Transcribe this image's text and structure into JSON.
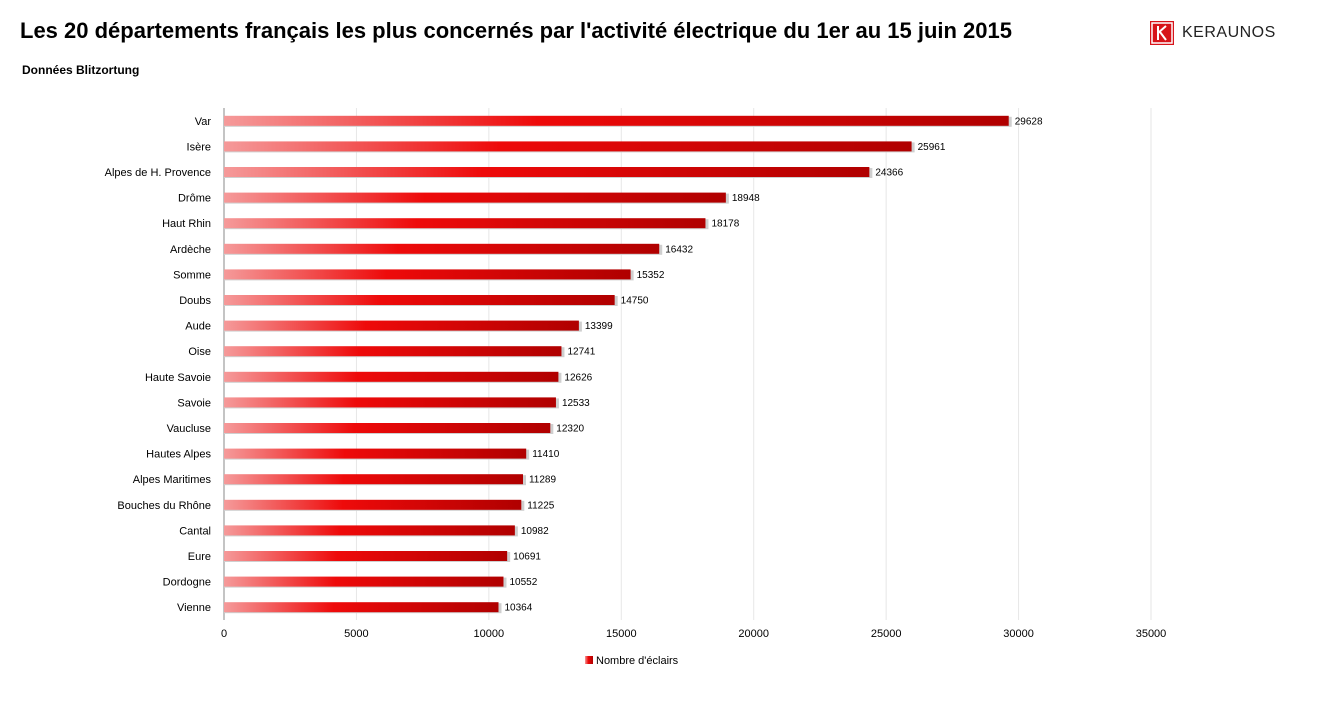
{
  "header": {
    "title": "Les 20 départements français les plus concernés par l'activité électrique du 1er au 15 juin 2015",
    "subtitle": "Données Blitzortung",
    "logo_text": "KERAUNOS"
  },
  "colors": {
    "bar_dark": "#b00000",
    "bar_mid": "#ee0a0a",
    "bar_light": "#f59a9a",
    "brand": "#d7141a",
    "grid": "#e6e6e6"
  },
  "chart_data": {
    "type": "bar",
    "orientation": "horizontal",
    "categories": [
      "Var",
      "Isère",
      "Alpes de H. Provence",
      "Drôme",
      "Haut Rhin",
      "Ardèche",
      "Somme",
      "Doubs",
      "Aude",
      "Oise",
      "Haute Savoie",
      "Savoie",
      "Vaucluse",
      "Hautes Alpes",
      "Alpes Maritimes",
      "Bouches du Rhône",
      "Cantal",
      "Eure",
      "Dordogne",
      "Vienne"
    ],
    "series": [
      {
        "name": "Nombre d'éclairs",
        "values": [
          29628,
          25961,
          24366,
          18948,
          18178,
          16432,
          15352,
          14750,
          13399,
          12741,
          12626,
          12533,
          12320,
          11410,
          11289,
          11225,
          10982,
          10691,
          10552,
          10364
        ]
      }
    ],
    "xlim": [
      0,
      35000
    ],
    "xticks": [
      0,
      5000,
      10000,
      15000,
      20000,
      25000,
      30000,
      35000
    ],
    "grid": true,
    "legend_position": "bottom",
    "data_labels": true
  }
}
